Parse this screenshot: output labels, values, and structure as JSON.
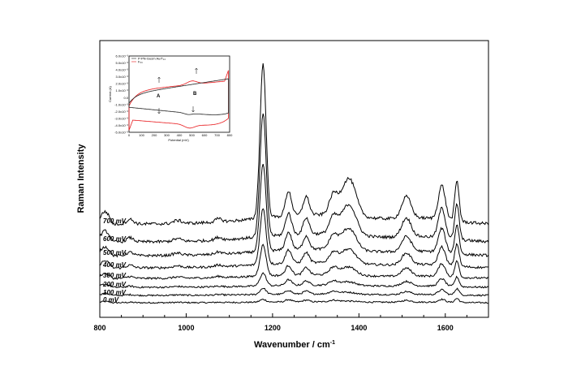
{
  "chart_data": [
    {
      "type": "line",
      "xlabel": "Wavenumber / cm",
      "xlabel_sup": "-1",
      "ylabel": "Raman Intensity",
      "xlim": [
        800,
        1700
      ],
      "x_ticks": [
        "800",
        "1000",
        "1200",
        "1400",
        "1600"
      ],
      "y_ticks_shown": false,
      "grid": false,
      "series": [
        {
          "name": "0 mV"
        },
        {
          "name": "100 mV"
        },
        {
          "name": "200 mV"
        },
        {
          "name": "300 mV"
        },
        {
          "name": "400 mV"
        },
        {
          "name": "500 mV"
        },
        {
          "name": "600 mV"
        },
        {
          "name": "700 mV"
        }
      ],
      "peaks_cm": [
        1178,
        1237,
        1278,
        1340,
        1380,
        1510,
        1592,
        1627
      ]
    },
    {
      "type": "line",
      "inset": true,
      "xlabel": "Potential (mV)",
      "ylabel": "Current (A)",
      "x_ticks": [
        "0",
        "100",
        "200",
        "300",
        "400",
        "500",
        "600",
        "700",
        "800"
      ],
      "y_ticks": [
        "6.0x10⁻³",
        "5.0x10⁻³",
        "4.0x10⁻³",
        "3.0x10⁻³",
        "2.0x10⁻³",
        "1.0x10⁻³",
        "0.0",
        "-1.0x10⁻³",
        "-2.0x10⁻³",
        "-3.0x10⁻³",
        "-4.0x10⁻³",
        "-5.0x10⁻³"
      ],
      "legend": [
        "P-PN-Gusm Au/T₁₄",
        "F₀₀"
      ],
      "annotations": [
        "A",
        "B"
      ],
      "series_colors": [
        "#e8191c",
        "#222222"
      ]
    }
  ]
}
